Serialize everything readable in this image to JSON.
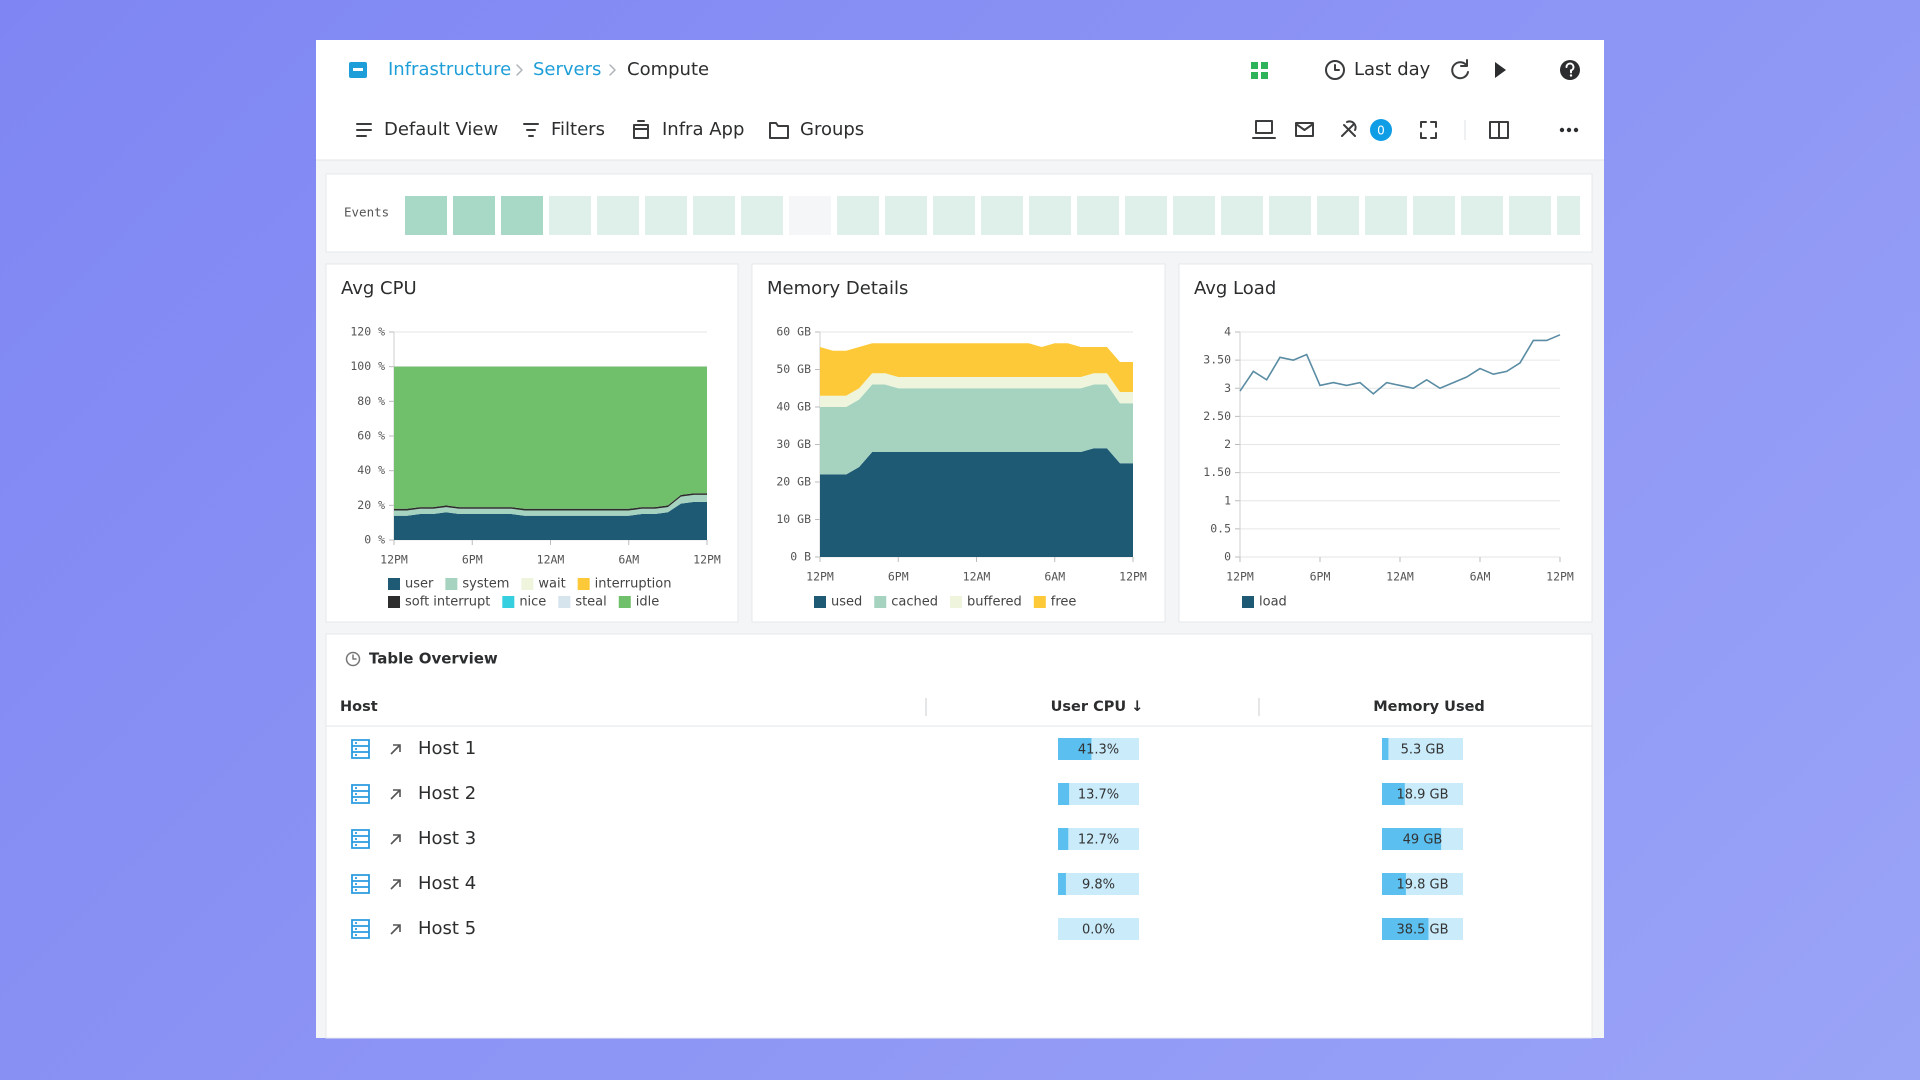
{
  "breadcrumb": [
    "Infrastructure",
    "Servers",
    "Compute"
  ],
  "time_range": "Last day",
  "toolbar": [
    "Default View",
    "Filters",
    "Infra App",
    "Groups"
  ],
  "alerts_count": 0,
  "events": {
    "label": "Events",
    "colors": [
      "#a8d8c6",
      "#a8d8c6",
      "#a8d8c6",
      "#dff0ea",
      "#dff0ea",
      "#dff0ea",
      "#dff0ea",
      "#dff0ea",
      "#f4f6f8",
      "#dff0ea",
      "#dff0ea",
      "#dff0ea",
      "#dff0ea",
      "#dff0ea",
      "#dff0ea",
      "#dff0ea",
      "#dff0ea",
      "#dff0ea",
      "#dff0ea",
      "#dff0ea",
      "#dff0ea",
      "#dff0ea",
      "#dff0ea",
      "#dff0ea",
      "#dff0ea"
    ]
  },
  "chart_data": [
    {
      "type": "area",
      "stacked": true,
      "title": "Avg CPU",
      "grid": true,
      "x": [
        0,
        1,
        2,
        3,
        4,
        5,
        6,
        7,
        8,
        9,
        10,
        11,
        12,
        13,
        14,
        15,
        16,
        17,
        18,
        19,
        20,
        21,
        22,
        23,
        24
      ],
      "xlim": [
        0,
        24
      ],
      "xticks": [
        {
          "value": 0,
          "label": "12PM"
        },
        {
          "value": 6,
          "label": "6PM"
        },
        {
          "value": 12,
          "label": "12AM"
        },
        {
          "value": 18,
          "label": "6AM"
        },
        {
          "value": 24,
          "label": "12PM"
        }
      ],
      "ylim": [
        0,
        120
      ],
      "yticks": [
        {
          "value": 0,
          "label": "0 %"
        },
        {
          "value": 20,
          "label": "20 %"
        },
        {
          "value": 40,
          "label": "40 %"
        },
        {
          "value": 60,
          "label": "60 %"
        },
        {
          "value": 80,
          "label": "80 %"
        },
        {
          "value": 100,
          "label": "100 %"
        },
        {
          "value": 120,
          "label": "120 %"
        }
      ],
      "series": [
        {
          "name": "user",
          "color": "#1f5a74",
          "values": [
            14,
            14,
            15,
            15,
            16,
            15,
            15,
            15,
            15,
            15,
            14,
            14,
            14,
            14,
            14,
            14,
            14,
            14,
            14,
            15,
            15,
            16,
            21,
            22,
            22
          ]
        },
        {
          "name": "system",
          "color": "#a5d3c0",
          "values": [
            3,
            3,
            3,
            3,
            3,
            3,
            3,
            3,
            3,
            3,
            3,
            3,
            3,
            3,
            3,
            3,
            3,
            3,
            3,
            3,
            3,
            3,
            4,
            4,
            4
          ]
        },
        {
          "name": "wait",
          "color": "#eef5dc",
          "values": [
            0,
            0,
            0,
            0,
            0,
            0,
            0,
            0,
            0,
            0,
            0,
            0,
            0,
            0,
            0,
            0,
            0,
            0,
            0,
            0,
            0,
            0,
            0,
            0,
            0
          ]
        },
        {
          "name": "interruption",
          "color": "#fdc939",
          "values": [
            0,
            0,
            0,
            0,
            0,
            0,
            0,
            0,
            0,
            0,
            0,
            0,
            0,
            0,
            0,
            0,
            0,
            0,
            0,
            0,
            0,
            0,
            0,
            0,
            0
          ]
        },
        {
          "name": "soft interrupt",
          "color": "#2d2d2d",
          "values": [
            1,
            1,
            1,
            1,
            1,
            1,
            1,
            1,
            1,
            1,
            1,
            1,
            1,
            1,
            1,
            1,
            1,
            1,
            1,
            1,
            1,
            1,
            1,
            1,
            1
          ]
        },
        {
          "name": "nice",
          "color": "#36cfe0",
          "values": [
            0,
            0,
            0,
            0,
            0,
            0,
            0,
            0,
            0,
            0,
            0,
            0,
            0,
            0,
            0,
            0,
            0,
            0,
            0,
            0,
            0,
            0,
            0,
            0,
            0
          ]
        },
        {
          "name": "steal",
          "color": "#d6e4ee",
          "values": [
            0,
            0,
            0,
            0,
            0,
            0,
            0,
            0,
            0,
            0,
            0,
            0,
            0,
            0,
            0,
            0,
            0,
            0,
            0,
            0,
            0,
            0,
            0,
            0,
            0
          ]
        },
        {
          "name": "idle",
          "color": "#70bf6a",
          "values": [
            82,
            82,
            81,
            81,
            80,
            81,
            81,
            81,
            81,
            81,
            82,
            82,
            82,
            82,
            82,
            82,
            82,
            82,
            82,
            81,
            81,
            80,
            74,
            73,
            73
          ]
        }
      ]
    },
    {
      "type": "area",
      "stacked": true,
      "title": "Memory Details",
      "grid": true,
      "x": [
        0,
        1,
        2,
        3,
        4,
        5,
        6,
        7,
        8,
        9,
        10,
        11,
        12,
        13,
        14,
        15,
        16,
        17,
        18,
        19,
        20,
        21,
        22,
        23,
        24
      ],
      "xlim": [
        0,
        24
      ],
      "xticks": [
        {
          "value": 0,
          "label": "12PM"
        },
        {
          "value": 6,
          "label": "6PM"
        },
        {
          "value": 12,
          "label": "12AM"
        },
        {
          "value": 18,
          "label": "6AM"
        },
        {
          "value": 24,
          "label": "12PM"
        }
      ],
      "ylim": [
        0,
        60
      ],
      "yticks": [
        {
          "value": 0,
          "label": "0 B"
        },
        {
          "value": 10,
          "label": "10 GB"
        },
        {
          "value": 20,
          "label": "20 GB"
        },
        {
          "value": 30,
          "label": "30 GB"
        },
        {
          "value": 40,
          "label": "40 GB"
        },
        {
          "value": 50,
          "label": "50 GB"
        },
        {
          "value": 60,
          "label": "60 GB"
        }
      ],
      "series": [
        {
          "name": "used",
          "color": "#1f5a74",
          "values": [
            22,
            22,
            22,
            24,
            28,
            28,
            28,
            28,
            28,
            28,
            28,
            28,
            28,
            28,
            28,
            28,
            28,
            28,
            28,
            28,
            28,
            29,
            29,
            25,
            25
          ]
        },
        {
          "name": "cached",
          "color": "#a5d3c0",
          "values": [
            18,
            18,
            18,
            18,
            18,
            18,
            17,
            17,
            17,
            17,
            17,
            17,
            17,
            17,
            17,
            17,
            17,
            17,
            17,
            17,
            17,
            17,
            17,
            16,
            16
          ]
        },
        {
          "name": "buffered",
          "color": "#eef5dc",
          "values": [
            3,
            3,
            3,
            3,
            3,
            3,
            3,
            3,
            3,
            3,
            3,
            3,
            3,
            3,
            3,
            3,
            3,
            3,
            3,
            3,
            3,
            3,
            3,
            3,
            3
          ]
        },
        {
          "name": "free",
          "color": "#fdc939",
          "values": [
            13,
            12,
            12,
            11,
            8,
            8,
            9,
            9,
            9,
            9,
            9,
            9,
            9,
            9,
            9,
            9,
            9,
            8,
            9,
            9,
            8,
            7,
            7,
            8,
            8
          ]
        }
      ]
    },
    {
      "type": "line",
      "title": "Avg Load",
      "grid": true,
      "x": [
        0,
        1,
        2,
        3,
        4,
        5,
        6,
        7,
        8,
        9,
        10,
        11,
        12,
        13,
        14,
        15,
        16,
        17,
        18,
        19,
        20,
        21,
        22,
        23,
        24
      ],
      "xlim": [
        0,
        24
      ],
      "xticks": [
        {
          "value": 0,
          "label": "12PM"
        },
        {
          "value": 6,
          "label": "6PM"
        },
        {
          "value": 12,
          "label": "12AM"
        },
        {
          "value": 18,
          "label": "6AM"
        },
        {
          "value": 24,
          "label": "12PM"
        }
      ],
      "ylim": [
        0,
        4
      ],
      "yticks": [
        0,
        0.5,
        1,
        {
          "value": 1.5,
          "label": "1.50"
        },
        2,
        {
          "value": 2.5,
          "label": "2.50"
        },
        3,
        {
          "value": 3.5,
          "label": "3.50"
        },
        4
      ],
      "series": [
        {
          "name": "load",
          "color": "#1f5a74",
          "line_color": "#5a8ca3",
          "values": [
            2.95,
            3.3,
            3.15,
            3.55,
            3.5,
            3.6,
            3.05,
            3.1,
            3.05,
            3.1,
            2.9,
            3.1,
            3.05,
            3.0,
            3.15,
            3.0,
            3.1,
            3.2,
            3.35,
            3.25,
            3.3,
            3.45,
            3.85,
            3.85,
            3.95
          ]
        }
      ]
    }
  ],
  "table": {
    "title": "Table Overview",
    "columns": [
      "Host",
      "User CPU ↓",
      "Memory Used"
    ],
    "rows": [
      {
        "host": "Host 1",
        "user_cpu": 41.3,
        "user_cpu_label": "41.3%",
        "memory_used": 5.3,
        "memory_used_label": "5.3 GB"
      },
      {
        "host": "Host 2",
        "user_cpu": 13.7,
        "user_cpu_label": "13.7%",
        "memory_used": 18.9,
        "memory_used_label": "18.9 GB"
      },
      {
        "host": "Host 3",
        "user_cpu": 12.7,
        "user_cpu_label": "12.7%",
        "memory_used": 49,
        "memory_used_label": "49 GB"
      },
      {
        "host": "Host 4",
        "user_cpu": 9.8,
        "user_cpu_label": "9.8%",
        "memory_used": 19.8,
        "memory_used_label": "19.8 GB"
      },
      {
        "host": "Host 5",
        "user_cpu": 0,
        "user_cpu_label": "0.0%",
        "memory_used": 38.5,
        "memory_used_label": "38.5 GB"
      }
    ]
  }
}
